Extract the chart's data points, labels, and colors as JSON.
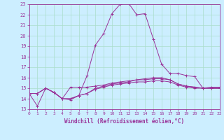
{
  "xlabel": "Windchill (Refroidissement éolien,°C)",
  "bg_color": "#cceeff",
  "line_color": "#993399",
  "grid_color": "#aaddcc",
  "xlim": [
    0,
    23
  ],
  "ylim": [
    13,
    23
  ],
  "xticks": [
    0,
    1,
    2,
    3,
    4,
    5,
    6,
    7,
    8,
    9,
    10,
    11,
    12,
    13,
    14,
    15,
    16,
    17,
    18,
    19,
    20,
    21,
    22,
    23
  ],
  "yticks": [
    13,
    14,
    15,
    16,
    17,
    18,
    19,
    20,
    21,
    22,
    23
  ],
  "series": [
    {
      "x": [
        0,
        1,
        2,
        3,
        4,
        5,
        6,
        7,
        8,
        9,
        10,
        11,
        12,
        13,
        14,
        15,
        16,
        17,
        18,
        19,
        20,
        21,
        22,
        23
      ],
      "y": [
        14.5,
        13.3,
        15.0,
        14.6,
        14.0,
        13.9,
        14.3,
        16.2,
        19.1,
        20.2,
        22.1,
        23.0,
        23.1,
        22.0,
        22.1,
        19.7,
        17.3,
        16.4,
        16.4,
        16.2,
        16.1,
        15.0,
        15.1,
        15.1
      ]
    },
    {
      "x": [
        0,
        1,
        2,
        3,
        4,
        5,
        6,
        7,
        8,
        9,
        10,
        11,
        12,
        13,
        14,
        15,
        16,
        17,
        18,
        19,
        20,
        21,
        22,
        23
      ],
      "y": [
        14.5,
        14.5,
        15.0,
        14.6,
        14.0,
        15.1,
        15.1,
        15.1,
        15.2,
        15.3,
        15.5,
        15.6,
        15.7,
        15.8,
        15.9,
        16.0,
        16.0,
        15.8,
        15.4,
        15.2,
        15.1,
        15.0,
        15.0,
        15.0
      ]
    },
    {
      "x": [
        0,
        1,
        2,
        3,
        4,
        5,
        6,
        7,
        8,
        9,
        10,
        11,
        12,
        13,
        14,
        15,
        16,
        17,
        18,
        19,
        20,
        21,
        22,
        23
      ],
      "y": [
        14.5,
        14.5,
        15.0,
        14.6,
        14.0,
        14.0,
        14.3,
        14.5,
        15.0,
        15.2,
        15.4,
        15.5,
        15.6,
        15.8,
        15.8,
        15.9,
        15.9,
        15.8,
        15.4,
        15.2,
        15.1,
        15.0,
        15.0,
        15.0
      ]
    },
    {
      "x": [
        0,
        1,
        2,
        3,
        4,
        5,
        6,
        7,
        8,
        9,
        10,
        11,
        12,
        13,
        14,
        15,
        16,
        17,
        18,
        19,
        20,
        21,
        22,
        23
      ],
      "y": [
        14.5,
        14.5,
        15.0,
        14.6,
        14.0,
        14.0,
        14.3,
        14.5,
        14.9,
        15.1,
        15.3,
        15.4,
        15.5,
        15.6,
        15.6,
        15.7,
        15.7,
        15.6,
        15.3,
        15.1,
        15.0,
        15.0,
        15.0,
        15.0
      ]
    }
  ]
}
